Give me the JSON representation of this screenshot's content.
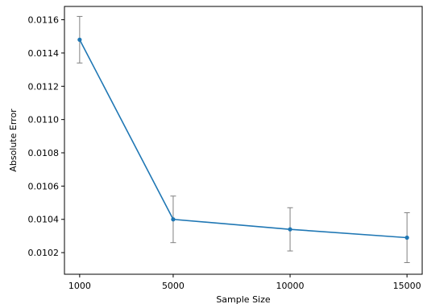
{
  "chart_data": {
    "type": "line",
    "title": "",
    "xlabel": "Sample Size",
    "ylabel": "Absolute Error",
    "x": [
      1000,
      5000,
      10000,
      15000
    ],
    "x_tick_labels": [
      "1000",
      "5000",
      "10000",
      "15000"
    ],
    "series": [
      {
        "values": [
          0.01148,
          0.0104,
          0.01034,
          0.01029
        ],
        "error": [
          0.00014,
          0.00014,
          0.00013,
          0.00015
        ]
      }
    ],
    "ylim": [
      0.01007,
      0.01168
    ],
    "xlim": [
      350,
      15650
    ],
    "y_ticks": [
      0.0102,
      0.0104,
      0.0106,
      0.0108,
      0.011,
      0.0112,
      0.0114,
      0.0116
    ],
    "y_tick_labels": [
      "0.0102",
      "0.0104",
      "0.0106",
      "0.0108",
      "0.0110",
      "0.0112",
      "0.0114",
      "0.0116"
    ],
    "grid": false,
    "legend": "none",
    "colors": {
      "line": "#1f77b4",
      "errorbar": "#808080",
      "axis": "#000000"
    }
  }
}
